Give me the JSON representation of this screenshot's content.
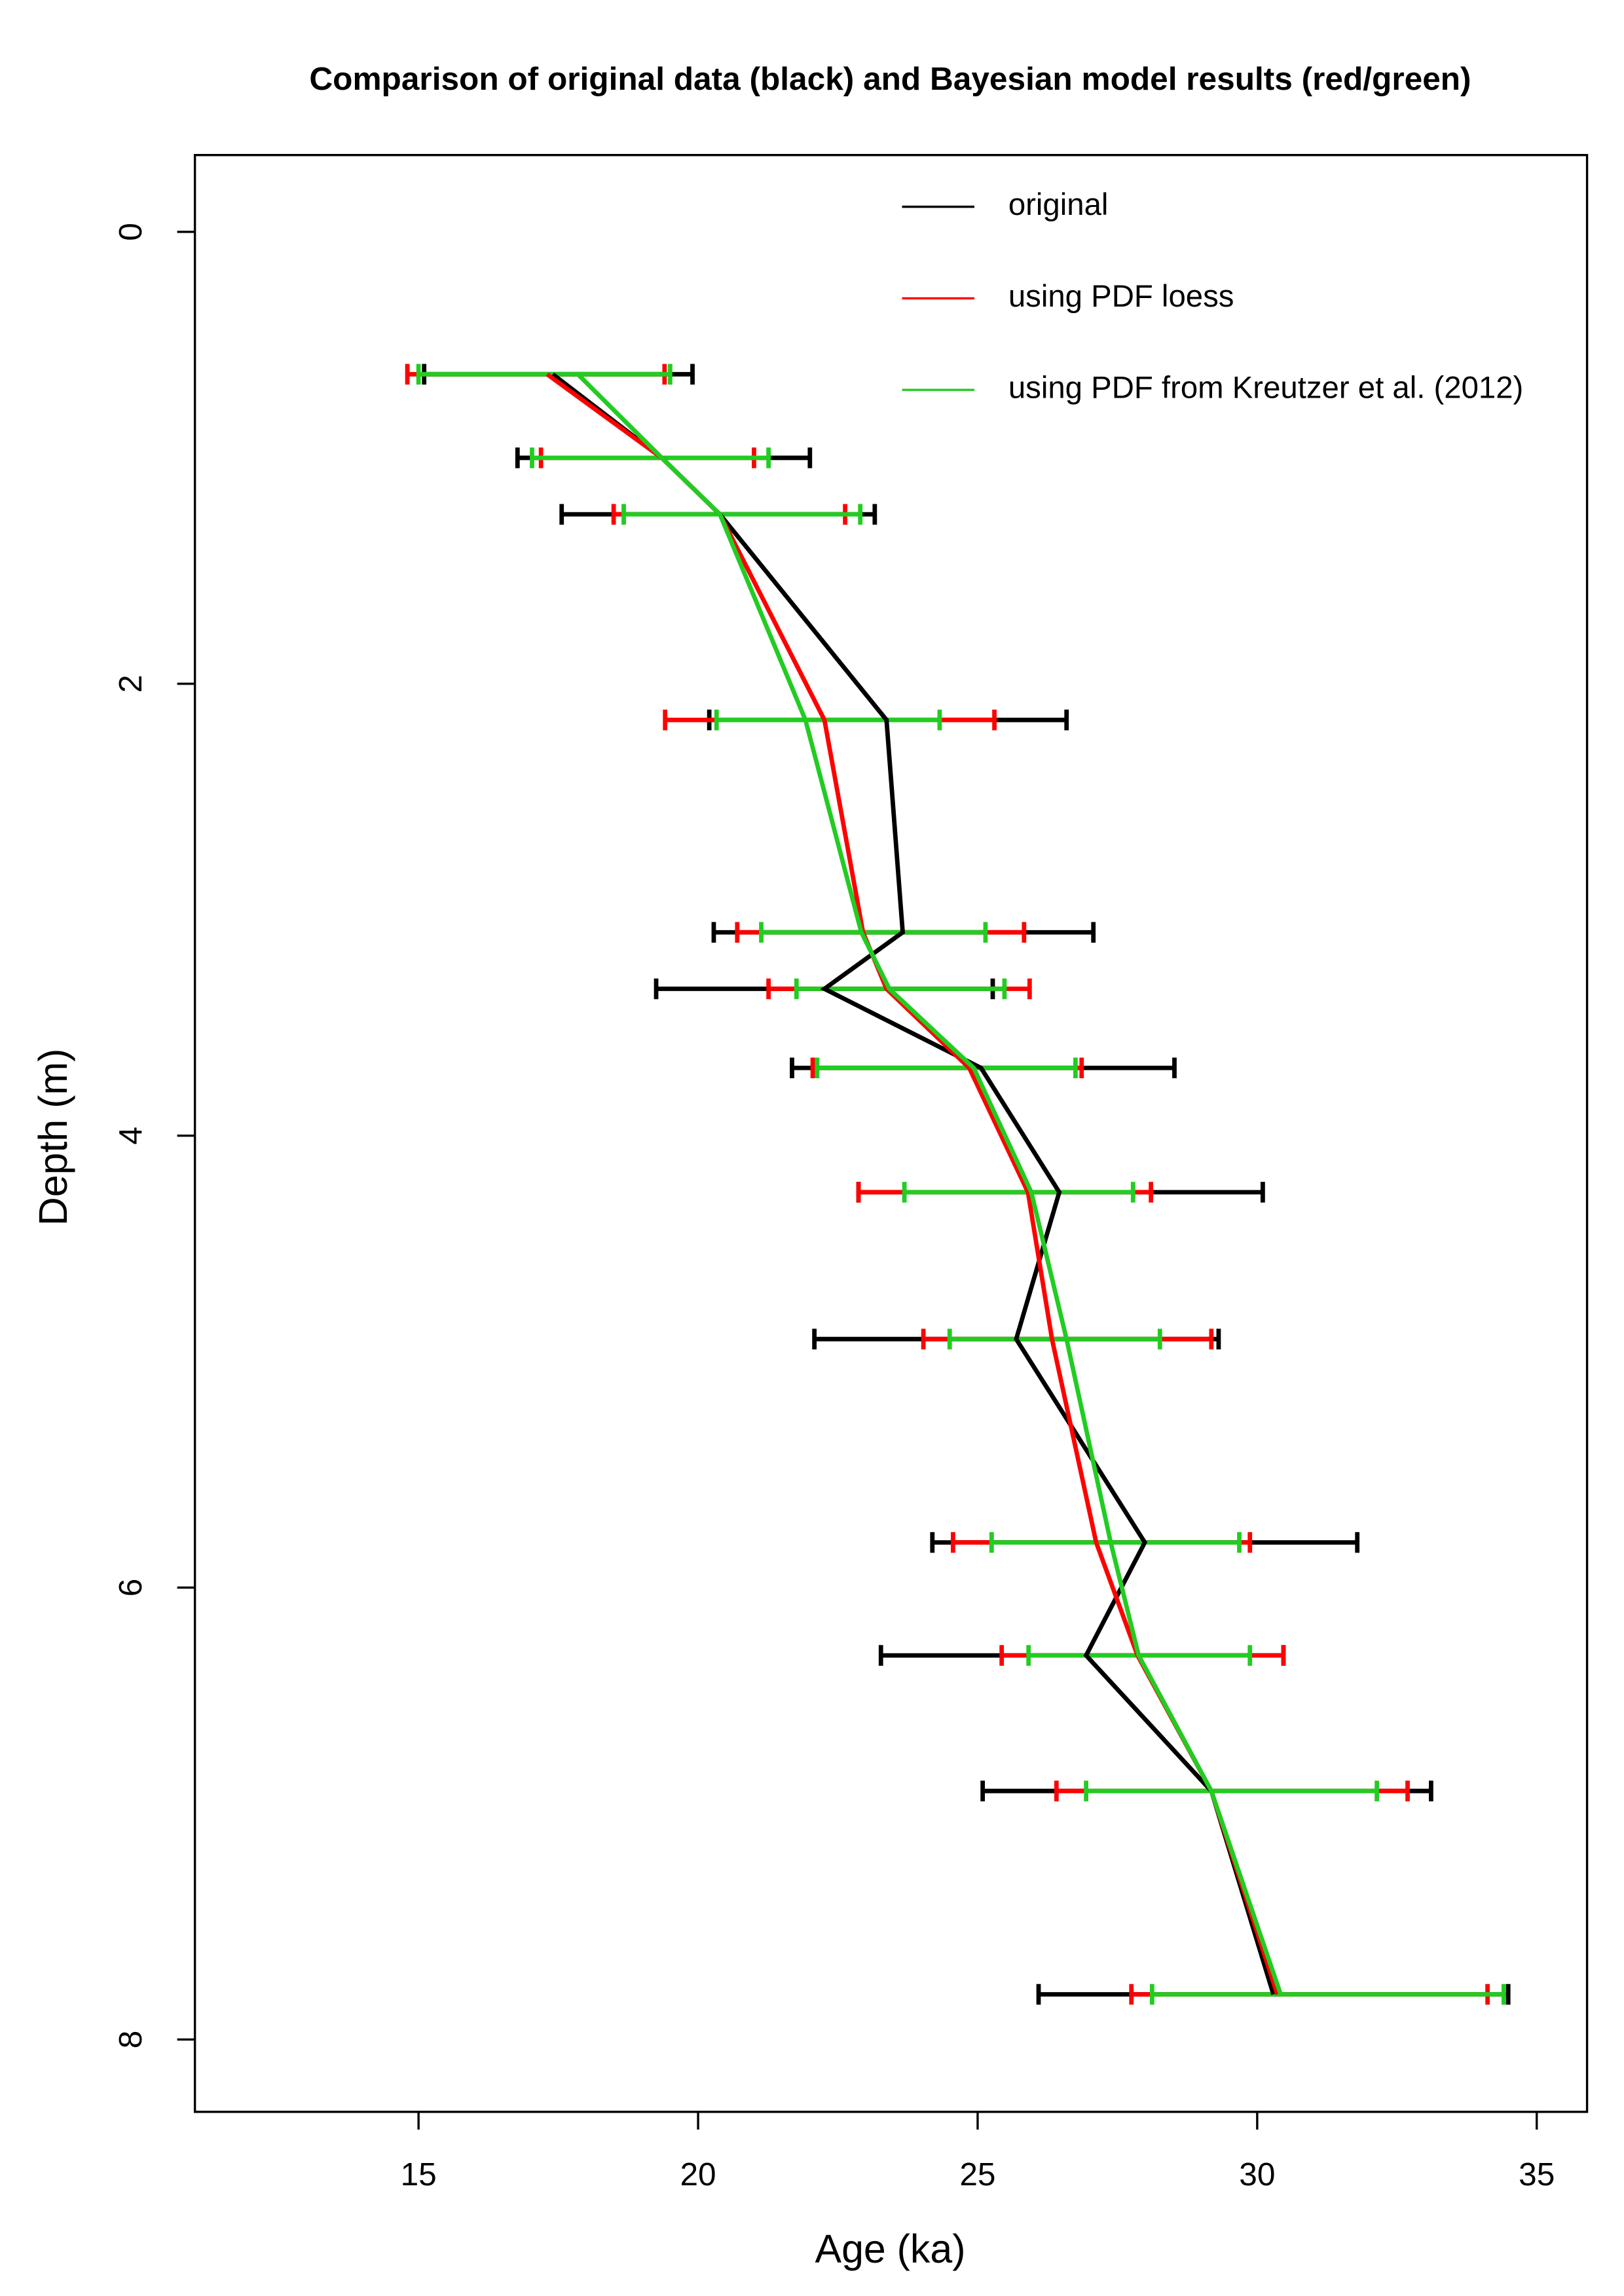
{
  "chart_data": {
    "type": "errorbar-line",
    "title": "Comparison of original data (black) and Bayesian model results (red/green)",
    "x_label": "Age (ka)",
    "y_label": "Depth (m)",
    "depth": [
      0.63,
      1.0,
      1.25,
      2.16,
      3.1,
      3.35,
      3.7,
      4.25,
      4.9,
      5.8,
      6.3,
      6.9,
      7.8
    ],
    "series": [
      {
        "name": "original",
        "color": "#000000",
        "values": [
          17.4,
          19.35,
          20.39,
          23.37,
          23.66,
          22.26,
          25.06,
          26.46,
          25.69,
          27.99,
          26.94,
          29.18,
          30.29
        ],
        "lower": [
          15.1,
          16.77,
          17.56,
          20.2,
          20.28,
          19.25,
          21.68,
          22.87,
          22.08,
          24.19,
          23.27,
          25.09,
          26.09
        ],
        "upper": [
          19.9,
          22.0,
          23.16,
          26.59,
          27.07,
          25.27,
          28.52,
          30.1,
          29.31,
          31.79,
          30.47,
          33.11,
          34.49
        ]
      },
      {
        "name": "using PDF loess",
        "color": "#ff0000",
        "values": [
          17.3,
          19.35,
          20.39,
          22.26,
          22.95,
          23.37,
          24.85,
          25.9,
          26.33,
          27.12,
          27.86,
          29.18,
          30.36
        ],
        "lower": [
          14.8,
          17.19,
          18.49,
          19.41,
          20.7,
          21.26,
          22.05,
          22.87,
          24.03,
          24.56,
          25.43,
          26.41,
          27.75
        ],
        "upper": [
          19.4,
          21.0,
          22.63,
          25.3,
          25.83,
          25.93,
          26.86,
          28.1,
          29.18,
          29.87,
          30.47,
          32.69,
          34.12
        ]
      },
      {
        "name": "using PDF from Kreutzer et al. (2012)",
        "color": "#22cc22",
        "values": [
          17.85,
          19.35,
          20.39,
          21.92,
          22.92,
          23.42,
          24.93,
          25.96,
          26.59,
          27.38,
          27.88,
          29.18,
          30.42
        ],
        "lower": [
          15.0,
          17.03,
          18.67,
          20.33,
          21.13,
          21.76,
          22.13,
          23.69,
          24.5,
          25.25,
          25.91,
          26.94,
          28.12
        ],
        "upper": [
          19.5,
          21.26,
          22.9,
          24.32,
          25.14,
          25.48,
          26.75,
          27.78,
          28.26,
          29.68,
          29.87,
          32.14,
          34.41
        ]
      }
    ],
    "xlim": [
      11.0,
      35.9
    ],
    "xticks": [
      15,
      20,
      25,
      30,
      35
    ],
    "ylim": [
      8.32,
      -0.34
    ],
    "yticks": [
      0,
      2,
      4,
      6,
      8
    ],
    "legend": "top-right"
  }
}
